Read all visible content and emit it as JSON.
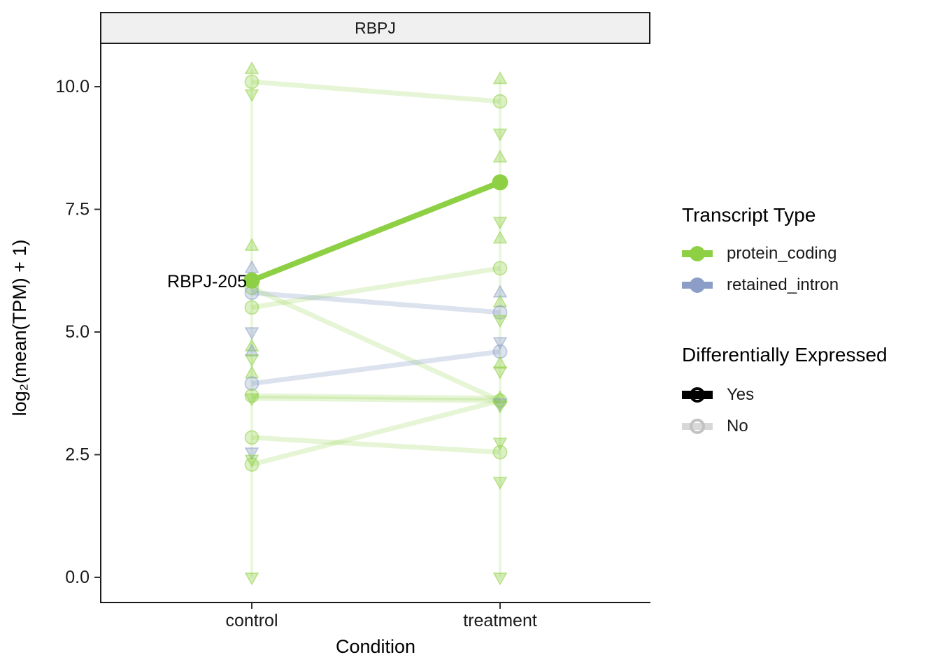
{
  "figure": {
    "facet_label": "RBPJ",
    "x_axis": {
      "title": "Condition",
      "categories": [
        "control",
        "treatment"
      ]
    },
    "y_axis": {
      "title": "log₂(mean(TPM) + 1)"
    },
    "annotation": {
      "text": "RBPJ-205"
    }
  },
  "legend": {
    "transcript_type": {
      "title": "Transcript Type",
      "items": [
        {
          "label": "protein_coding",
          "color_key": "protein_coding"
        },
        {
          "label": "retained_intron",
          "color_key": "retained_intron"
        }
      ]
    },
    "diff_expressed": {
      "title": "Differentially Expressed",
      "items": [
        {
          "label": "Yes",
          "color_key": "de_yes"
        },
        {
          "label": "No",
          "color_key": "de_no"
        }
      ]
    }
  },
  "chart_data": {
    "type": "line",
    "title": "RBPJ",
    "xlabel": "Condition",
    "ylabel": "log2(mean(TPM) + 1)",
    "categories": [
      "control",
      "treatment"
    ],
    "ylim": [
      0,
      11.4
    ],
    "grid": false,
    "legend_position": "right",
    "yticks": [
      {
        "value": 0.0,
        "label": "0.0"
      },
      {
        "value": 2.5,
        "label": "2.5"
      },
      {
        "value": 5.0,
        "label": "5.0"
      },
      {
        "value": 7.5,
        "label": "7.5"
      },
      {
        "value": 10.0,
        "label": "10.0"
      }
    ],
    "colors": {
      "protein_coding": "#8ed044",
      "retained_intron": "#8c9ec8",
      "de_yes": "#000000",
      "de_no": "#d8d8d8",
      "de_no_ring": "#c2c2c2"
    },
    "highlight": {
      "transcript": "RBPJ-205",
      "transcript_type": "protein_coding",
      "differentially_expressed": "Yes",
      "control": 6.05,
      "treatment": 8.05
    },
    "lines": [
      {
        "transcript_type": "protein_coding",
        "differentially_expressed": "No",
        "control": 10.1,
        "treatment": 9.7
      },
      {
        "transcript_type": "protein_coding",
        "differentially_expressed": "No",
        "control": 5.5,
        "treatment": 6.3
      },
      {
        "transcript_type": "retained_intron",
        "differentially_expressed": "No",
        "control": 5.8,
        "treatment": 5.4
      },
      {
        "transcript_type": "protein_coding",
        "differentially_expressed": "No",
        "control": 5.9,
        "treatment": 3.6
      },
      {
        "transcript_type": "retained_intron",
        "differentially_expressed": "No",
        "control": 3.95,
        "treatment": 4.6
      },
      {
        "transcript_type": "protein_coding",
        "differentially_expressed": "No",
        "control": 3.7,
        "treatment": 3.65
      },
      {
        "transcript_type": "protein_coding",
        "differentially_expressed": "No",
        "control": 3.65,
        "treatment": 3.6
      },
      {
        "transcript_type": "protein_coding",
        "differentially_expressed": "No",
        "control": 2.85,
        "treatment": 2.55
      },
      {
        "transcript_type": "protein_coding",
        "differentially_expressed": "No",
        "control": 2.3,
        "treatment": 3.6
      }
    ],
    "range_bars": [
      {
        "category": "control",
        "min": 0.0,
        "max": 10.35
      },
      {
        "category": "treatment",
        "min": 0.0,
        "max": 10.15
      }
    ],
    "markers": {
      "control": [
        {
          "value": 10.35,
          "shape": "triangle-up",
          "transcript_type": "protein_coding"
        },
        {
          "value": 10.1,
          "shape": "circle",
          "transcript_type": "protein_coding"
        },
        {
          "value": 9.85,
          "shape": "triangle-down",
          "transcript_type": "protein_coding"
        },
        {
          "value": 6.75,
          "shape": "triangle-up",
          "transcript_type": "protein_coding"
        },
        {
          "value": 6.3,
          "shape": "triangle-up",
          "transcript_type": "retained_intron"
        },
        {
          "value": 5.9,
          "shape": "circle",
          "transcript_type": "protein_coding"
        },
        {
          "value": 5.8,
          "shape": "circle",
          "transcript_type": "retained_intron"
        },
        {
          "value": 5.5,
          "shape": "circle",
          "transcript_type": "protein_coding"
        },
        {
          "value": 5.0,
          "shape": "triangle-down",
          "transcript_type": "retained_intron"
        },
        {
          "value": 4.7,
          "shape": "triangle-up",
          "transcript_type": "protein_coding"
        },
        {
          "value": 4.6,
          "shape": "triangle-up",
          "transcript_type": "retained_intron"
        },
        {
          "value": 4.45,
          "shape": "triangle-down",
          "transcript_type": "protein_coding"
        },
        {
          "value": 4.15,
          "shape": "triangle-up",
          "transcript_type": "protein_coding"
        },
        {
          "value": 3.95,
          "shape": "circle",
          "transcript_type": "retained_intron"
        },
        {
          "value": 3.7,
          "shape": "circle",
          "transcript_type": "protein_coding"
        },
        {
          "value": 3.65,
          "shape": "triangle-down",
          "transcript_type": "protein_coding"
        },
        {
          "value": 2.85,
          "shape": "circle",
          "transcript_type": "protein_coding"
        },
        {
          "value": 2.55,
          "shape": "triangle-down",
          "transcript_type": "retained_intron"
        },
        {
          "value": 2.4,
          "shape": "triangle-down",
          "transcript_type": "protein_coding"
        },
        {
          "value": 2.3,
          "shape": "circle",
          "transcript_type": "protein_coding"
        },
        {
          "value": 0.0,
          "shape": "triangle-down",
          "transcript_type": "protein_coding"
        }
      ],
      "treatment": [
        {
          "value": 10.15,
          "shape": "triangle-up",
          "transcript_type": "protein_coding"
        },
        {
          "value": 9.7,
          "shape": "circle",
          "transcript_type": "protein_coding"
        },
        {
          "value": 9.05,
          "shape": "triangle-down",
          "transcript_type": "protein_coding"
        },
        {
          "value": 8.55,
          "shape": "triangle-up",
          "transcript_type": "protein_coding"
        },
        {
          "value": 7.25,
          "shape": "triangle-down",
          "transcript_type": "protein_coding"
        },
        {
          "value": 6.9,
          "shape": "triangle-up",
          "transcript_type": "protein_coding"
        },
        {
          "value": 6.3,
          "shape": "circle",
          "transcript_type": "protein_coding"
        },
        {
          "value": 5.8,
          "shape": "triangle-up",
          "transcript_type": "retained_intron"
        },
        {
          "value": 5.6,
          "shape": "triangle-up",
          "transcript_type": "protein_coding"
        },
        {
          "value": 5.4,
          "shape": "circle",
          "transcript_type": "retained_intron"
        },
        {
          "value": 5.25,
          "shape": "triangle-down",
          "transcript_type": "protein_coding"
        },
        {
          "value": 4.8,
          "shape": "triangle-down",
          "transcript_type": "retained_intron"
        },
        {
          "value": 4.6,
          "shape": "circle",
          "transcript_type": "retained_intron"
        },
        {
          "value": 4.35,
          "shape": "triangle-up",
          "transcript_type": "protein_coding"
        },
        {
          "value": 4.2,
          "shape": "triangle-down",
          "transcript_type": "protein_coding"
        },
        {
          "value": 3.65,
          "shape": "triangle-up",
          "transcript_type": "protein_coding"
        },
        {
          "value": 3.6,
          "shape": "circle",
          "transcript_type": "protein_coding"
        },
        {
          "value": 3.55,
          "shape": "triangle-down",
          "transcript_type": "retained_intron"
        },
        {
          "value": 3.5,
          "shape": "triangle-down",
          "transcript_type": "protein_coding"
        },
        {
          "value": 2.75,
          "shape": "triangle-down",
          "transcript_type": "protein_coding"
        },
        {
          "value": 2.55,
          "shape": "circle",
          "transcript_type": "protein_coding"
        },
        {
          "value": 1.95,
          "shape": "triangle-down",
          "transcript_type": "protein_coding"
        },
        {
          "value": 0.0,
          "shape": "triangle-down",
          "transcript_type": "protein_coding"
        }
      ]
    }
  }
}
